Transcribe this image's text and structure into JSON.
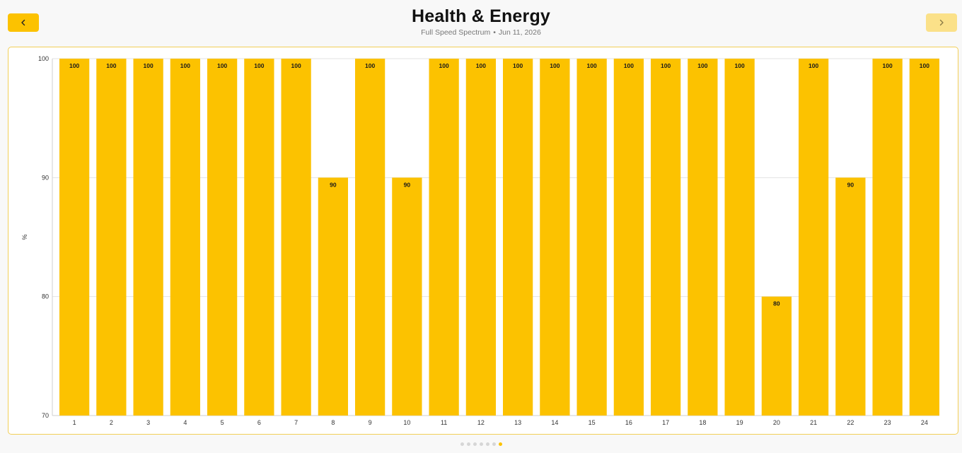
{
  "header": {
    "title": "Health & Energy",
    "subtitle_left": "Full Speed Spectrum",
    "subtitle_sep": "•",
    "subtitle_right": "Jun 11, 2026"
  },
  "nav": {
    "prev_icon": "chevron-left-icon",
    "next_icon": "chevron-right-icon",
    "next_enabled": false
  },
  "pager": {
    "count": 7,
    "active_index": 6
  },
  "colors": {
    "bar": "#fcc200",
    "accent": "#fcc200",
    "grid": "#e3e3e3",
    "axis": "#cfcfcf",
    "label": "#333333"
  },
  "chart_data": {
    "type": "bar",
    "title": "",
    "xlabel": "",
    "ylabel": "%",
    "ylim": [
      70,
      100
    ],
    "yticks": [
      70,
      80,
      90,
      100
    ],
    "grid": true,
    "categories": [
      "1",
      "2",
      "3",
      "4",
      "5",
      "6",
      "7",
      "8",
      "9",
      "10",
      "11",
      "12",
      "13",
      "14",
      "15",
      "16",
      "17",
      "18",
      "19",
      "20",
      "21",
      "22",
      "23",
      "24"
    ],
    "values": [
      100,
      100,
      100,
      100,
      100,
      100,
      100,
      90,
      100,
      90,
      100,
      100,
      100,
      100,
      100,
      100,
      100,
      100,
      100,
      80,
      100,
      90,
      100,
      100
    ],
    "data_labels": true
  }
}
